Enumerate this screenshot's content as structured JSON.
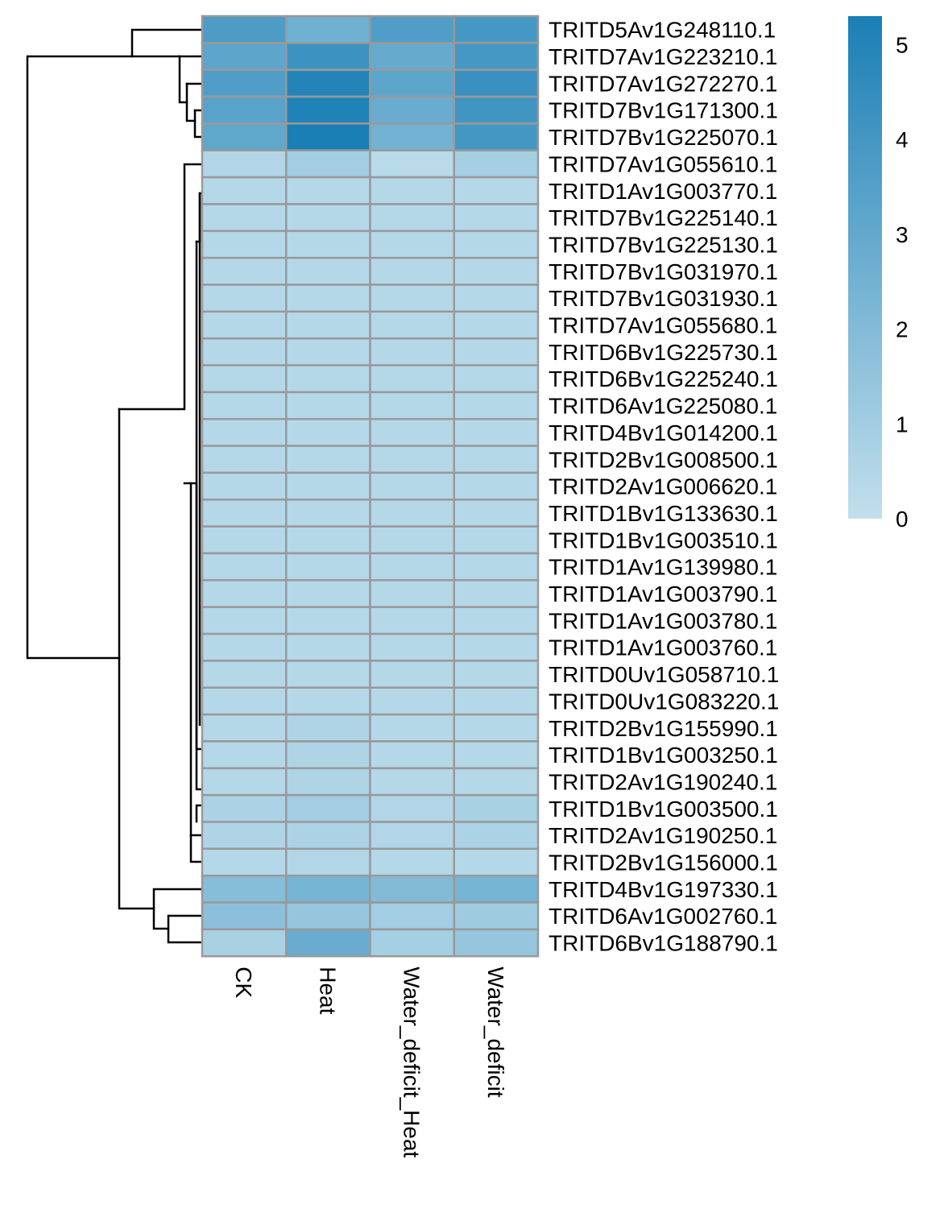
{
  "chart_data": {
    "type": "heatmap",
    "title": "",
    "xlabel": "",
    "ylabel": "",
    "columns": [
      "CK",
      "Heat",
      "Water_deficit_Heat",
      "Water_deficit"
    ],
    "rows": [
      "TRITD5Av1G248110.1",
      "TRITD7Av1G223210.1",
      "TRITD7Av1G272270.1",
      "TRITD7Bv1G171300.1",
      "TRITD7Bv1G225070.1",
      "TRITD7Av1G055610.1",
      "TRITD1Av1G003770.1",
      "TRITD7Bv1G225140.1",
      "TRITD7Bv1G225130.1",
      "TRITD7Bv1G031970.1",
      "TRITD7Bv1G031930.1",
      "TRITD7Av1G055680.1",
      "TRITD6Bv1G225730.1",
      "TRITD6Bv1G225240.1",
      "TRITD6Av1G225080.1",
      "TRITD4Bv1G014200.1",
      "TRITD2Bv1G008500.1",
      "TRITD2Av1G006620.1",
      "TRITD1Bv1G133630.1",
      "TRITD1Bv1G003510.1",
      "TRITD1Av1G139980.1",
      "TRITD1Av1G003790.1",
      "TRITD1Av1G003780.1",
      "TRITD1Av1G003760.1",
      "TRITD0Uv1G058710.1",
      "TRITD0Uv1G083220.1",
      "TRITD2Bv1G155990.1",
      "TRITD1Bv1G003250.1",
      "TRITD2Av1G190240.1",
      "TRITD1Bv1G003500.1",
      "TRITD2Av1G190250.1",
      "TRITD2Bv1G156000.1",
      "TRITD4Bv1G197330.1",
      "TRITD6Av1G002760.1",
      "TRITD6Bv1G188790.1"
    ],
    "values": [
      [
        3.7,
        2.6,
        3.6,
        3.9
      ],
      [
        3.2,
        4.2,
        2.9,
        3.9
      ],
      [
        3.6,
        5.0,
        3.2,
        4.3
      ],
      [
        3.3,
        5.1,
        2.8,
        4.1
      ],
      [
        3.1,
        5.3,
        2.5,
        4.0
      ],
      [
        0.5,
        1.0,
        0.3,
        0.9
      ],
      [
        0.4,
        0.4,
        0.4,
        0.4
      ],
      [
        0.4,
        0.4,
        0.4,
        0.4
      ],
      [
        0.4,
        0.4,
        0.4,
        0.4
      ],
      [
        0.4,
        0.4,
        0.4,
        0.4
      ],
      [
        0.4,
        0.4,
        0.4,
        0.4
      ],
      [
        0.4,
        0.4,
        0.4,
        0.4
      ],
      [
        0.4,
        0.4,
        0.4,
        0.4
      ],
      [
        0.4,
        0.4,
        0.4,
        0.4
      ],
      [
        0.4,
        0.4,
        0.4,
        0.4
      ],
      [
        0.4,
        0.4,
        0.4,
        0.4
      ],
      [
        0.4,
        0.4,
        0.4,
        0.4
      ],
      [
        0.4,
        0.4,
        0.4,
        0.4
      ],
      [
        0.4,
        0.4,
        0.4,
        0.4
      ],
      [
        0.4,
        0.4,
        0.4,
        0.4
      ],
      [
        0.4,
        0.4,
        0.4,
        0.4
      ],
      [
        0.4,
        0.4,
        0.4,
        0.4
      ],
      [
        0.4,
        0.4,
        0.4,
        0.4
      ],
      [
        0.4,
        0.4,
        0.4,
        0.4
      ],
      [
        0.4,
        0.4,
        0.4,
        0.4
      ],
      [
        0.4,
        0.4,
        0.4,
        0.4
      ],
      [
        0.4,
        0.6,
        0.4,
        0.4
      ],
      [
        0.4,
        0.6,
        0.4,
        0.4
      ],
      [
        0.4,
        0.6,
        0.4,
        0.4
      ],
      [
        0.7,
        1.0,
        0.5,
        0.8
      ],
      [
        0.6,
        0.7,
        0.5,
        0.7
      ],
      [
        0.4,
        0.5,
        0.4,
        0.4
      ],
      [
        1.9,
        2.4,
        2.0,
        2.4
      ],
      [
        1.7,
        1.4,
        1.0,
        1.1
      ],
      [
        0.8,
        2.8,
        0.9,
        1.4
      ]
    ],
    "color_scale": {
      "min": 0,
      "max": 5.3,
      "low_color": "#c2dfec",
      "high_color": "#1a7fb5",
      "ticks": [
        0,
        1,
        2,
        3,
        4,
        5
      ]
    },
    "cell_border_color": "#999999",
    "legend_position": "top-right",
    "row_dendrogram": true,
    "column_dendrogram": false
  }
}
